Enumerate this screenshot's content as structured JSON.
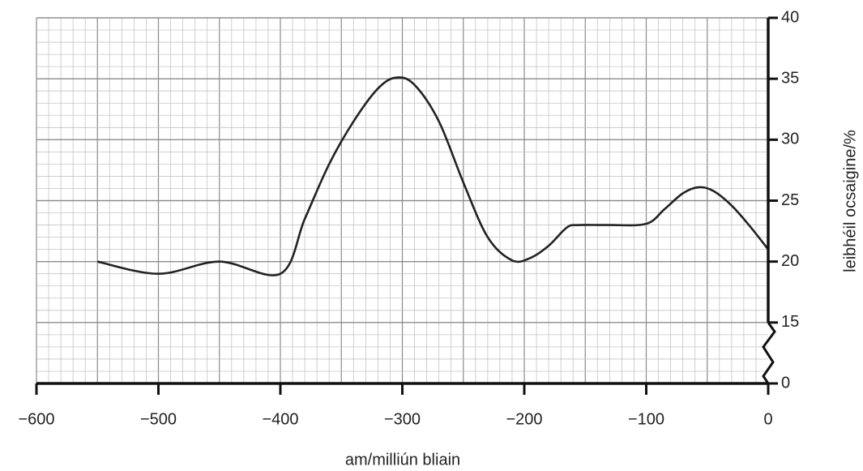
{
  "chart_data": {
    "type": "line",
    "x_label": "am/milliún bliain",
    "y_label": "leibhéil ocsaigine/%",
    "xlim": [
      -600,
      0
    ],
    "xticks": [
      {
        "value": -600,
        "label": "−600"
      },
      {
        "value": -500,
        "label": "−500"
      },
      {
        "value": -400,
        "label": "−400"
      },
      {
        "value": -300,
        "label": "−300"
      },
      {
        "value": -200,
        "label": "−200"
      },
      {
        "value": -100,
        "label": "−100"
      },
      0
    ],
    "ylim": [
      0,
      40
    ],
    "yticks": [
      0,
      15,
      20,
      25,
      30,
      35,
      40
    ],
    "axis_break": [
      0,
      15
    ],
    "y_axis_side": "right",
    "grid": true,
    "series": [
      {
        "color": "#222222",
        "x": [
          -550,
          -500,
          -450,
          -400,
          -380,
          -360,
          -340,
          -320,
          -305,
          -290,
          -270,
          -250,
          -230,
          -210,
          -195,
          -180,
          -165,
          -155,
          -130,
          -100,
          -85,
          -70,
          -57,
          -45,
          -30,
          -15,
          0
        ],
        "values": [
          20,
          19,
          20,
          19,
          23.5,
          28,
          31.5,
          34.2,
          35.1,
          34.5,
          31.5,
          26.5,
          22,
          20.1,
          20.3,
          21.3,
          22.8,
          23,
          23,
          23.1,
          24.3,
          25.6,
          26.1,
          25.8,
          24.6,
          22.9,
          21
        ]
      }
    ]
  }
}
